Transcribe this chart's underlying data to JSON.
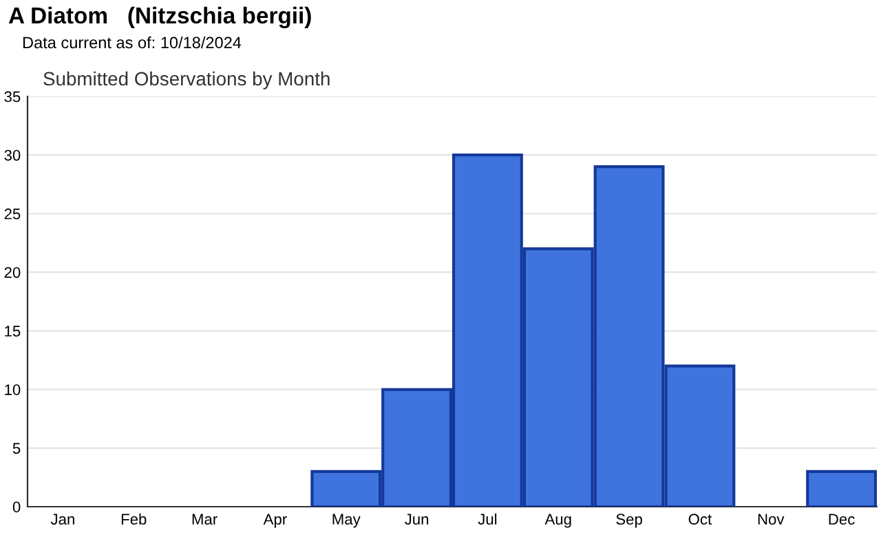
{
  "chart_data": {
    "type": "bar",
    "title": "A Diatom   (Nitzschia bergii)",
    "subtitle": "Data current as of: 10/18/2024",
    "annotations": [
      "Submitted Observations by Month"
    ],
    "categories": [
      "Jan",
      "Feb",
      "Mar",
      "Apr",
      "May",
      "Jun",
      "Jul",
      "Aug",
      "Sep",
      "Oct",
      "Nov",
      "Dec"
    ],
    "values": [
      0,
      0,
      0,
      0,
      3,
      10,
      30,
      22,
      29,
      12,
      0,
      3
    ],
    "color": "#3f74de",
    "ylim": [
      0,
      35
    ],
    "yticks": [
      0,
      5,
      10,
      15,
      20,
      25,
      30,
      35
    ],
    "grid": "y",
    "legend": false
  }
}
